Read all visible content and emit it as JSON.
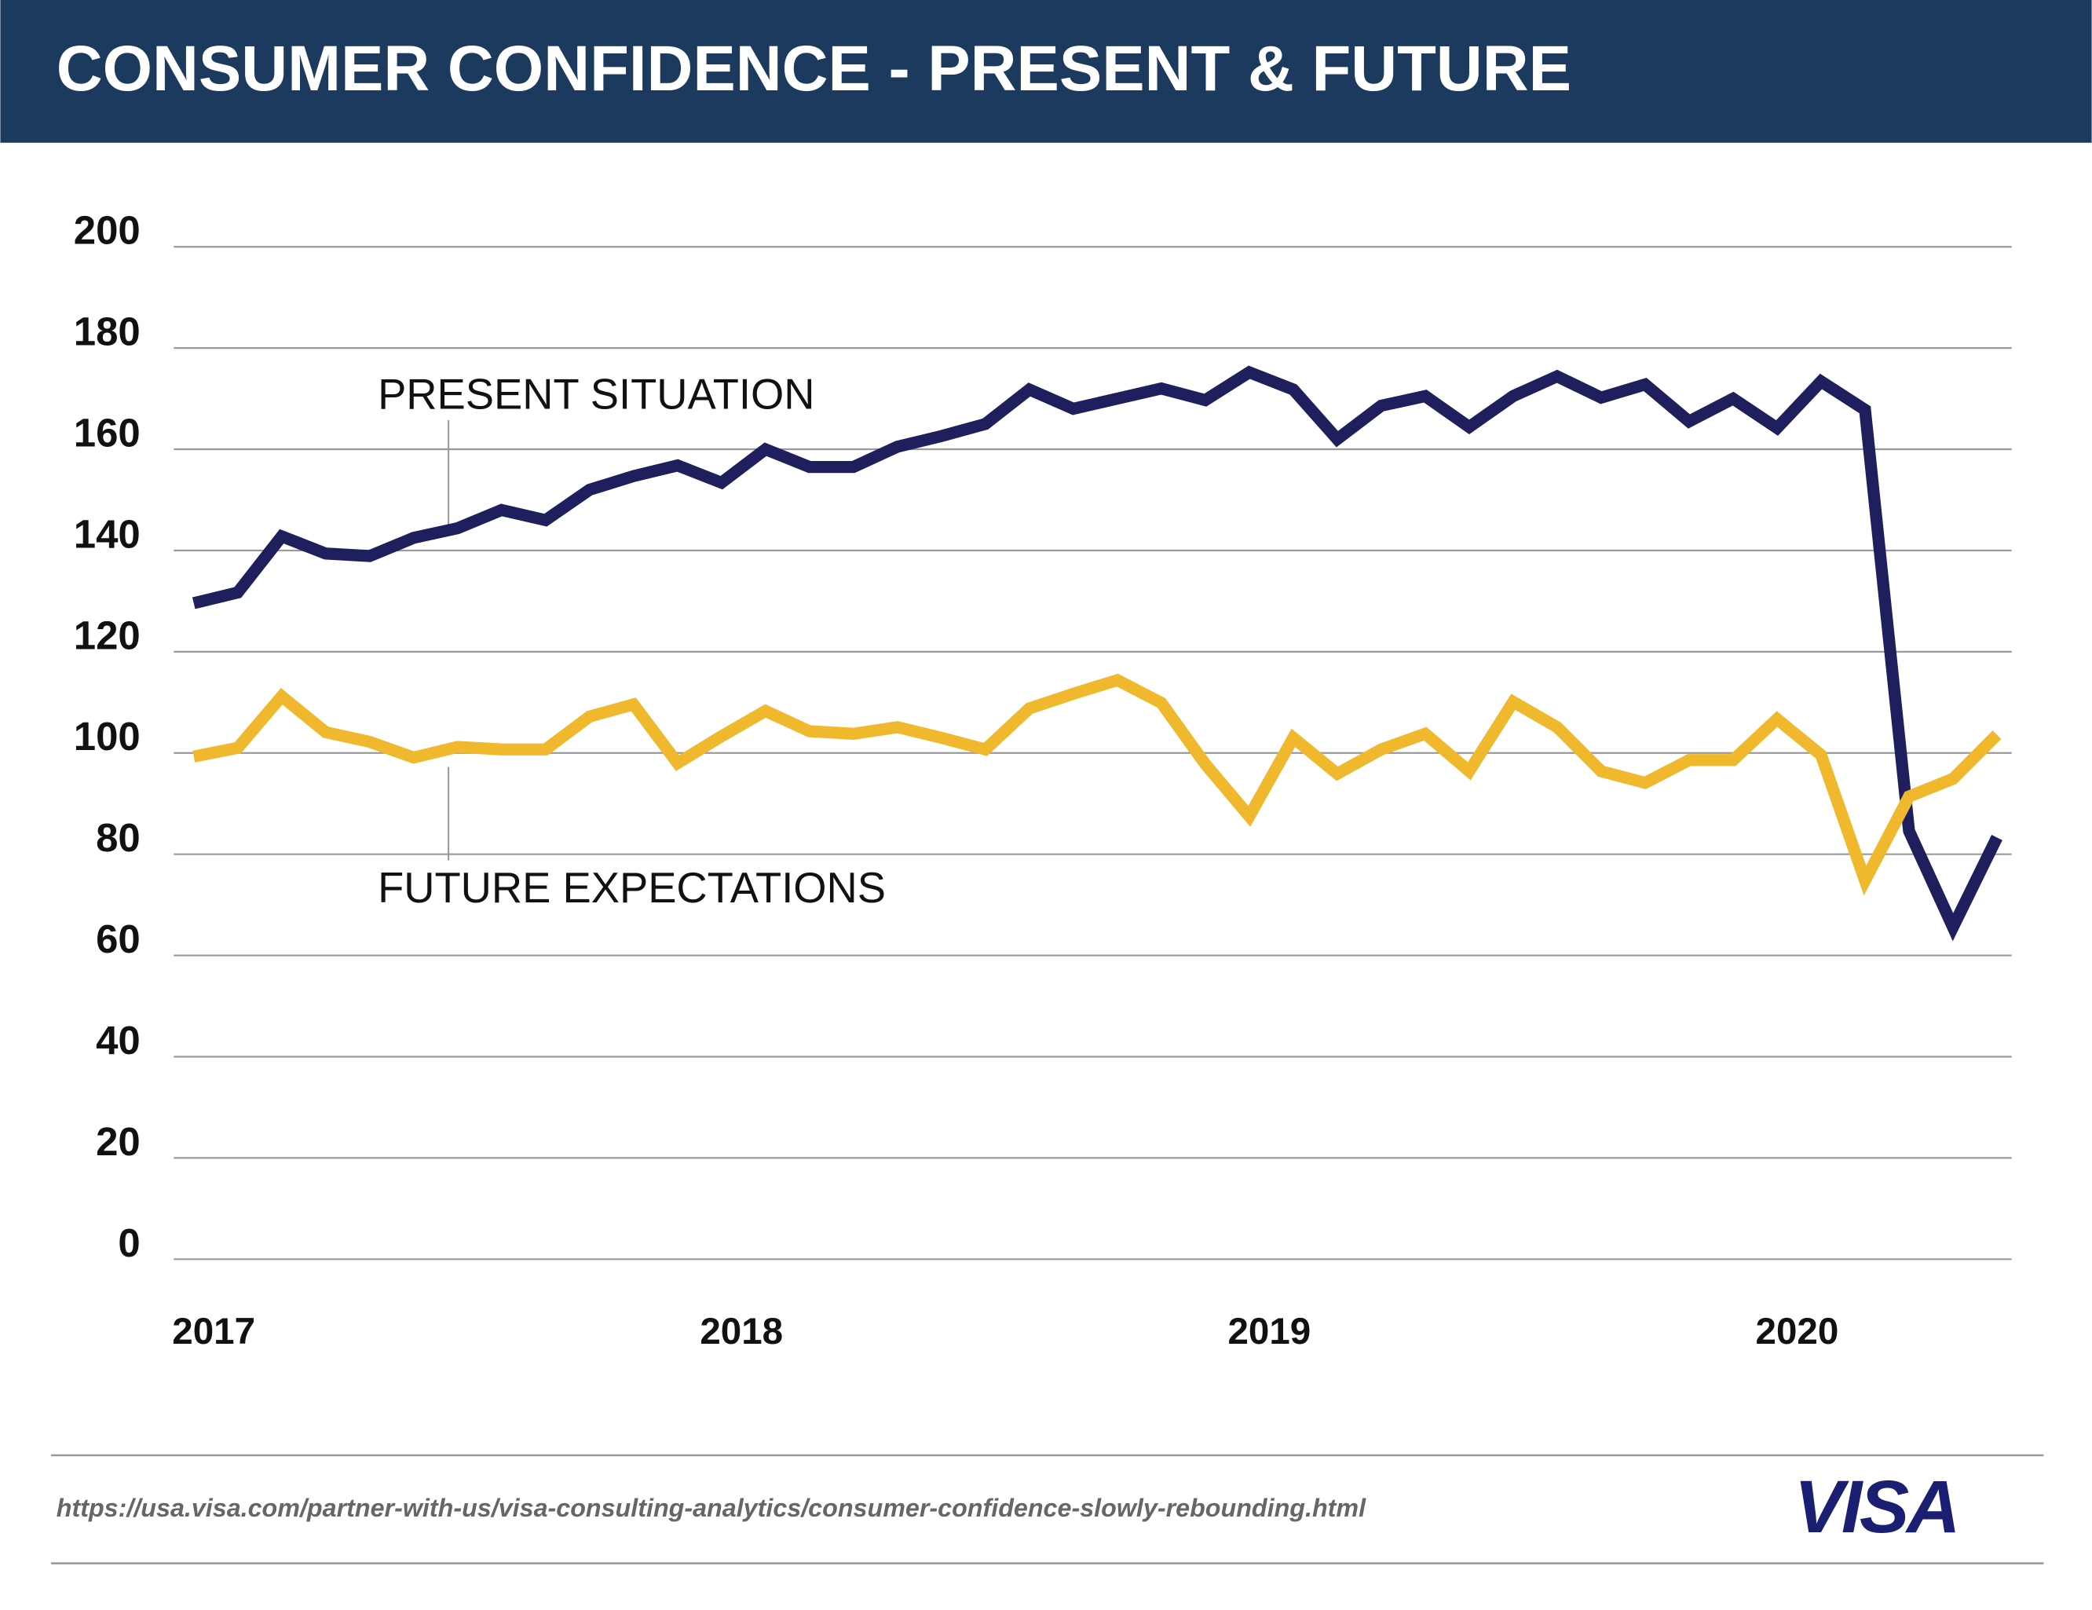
{
  "chart_data": {
    "type": "line",
    "title": "CONSUMER CONFIDENCE - PRESENT & FUTURE",
    "categories": [
      "2017",
      null,
      null,
      null,
      null,
      null,
      null,
      null,
      null,
      null,
      null,
      null,
      "2018",
      null,
      null,
      null,
      null,
      null,
      null,
      null,
      null,
      null,
      null,
      null,
      "2019",
      null,
      null,
      null,
      null,
      null,
      null,
      null,
      null,
      null,
      null,
      null,
      "2020",
      null,
      null,
      null,
      null,
      null
    ],
    "series": [
      {
        "name": "PRESENT SITUATION",
        "color": "#1f1f5e",
        "values": [
          129.6,
          131.7,
          142.8,
          139.4,
          138.9,
          142.5,
          144.4,
          148.0,
          146.0,
          152.0,
          154.7,
          156.8,
          153.4,
          160.0,
          156.5,
          156.5,
          160.5,
          162.6,
          165.0,
          171.8,
          168.0,
          170.0,
          172.0,
          169.7,
          175.2,
          171.8,
          162.0,
          168.6,
          170.5,
          164.4,
          170.5,
          174.4,
          170.2,
          172.8,
          165.5,
          170.0,
          164.2,
          173.4,
          167.8,
          84.6,
          65.6,
          83.3
        ]
      },
      {
        "name": "FUTURE EXPECTATIONS",
        "color": "#f0b92d",
        "values": [
          99.3,
          101.0,
          111.2,
          104.1,
          102.2,
          99.1,
          101.2,
          100.7,
          100.7,
          107.2,
          109.6,
          98.0,
          103.3,
          108.3,
          104.3,
          103.8,
          105.1,
          103.0,
          100.7,
          108.8,
          111.7,
          114.4,
          109.9,
          97.8,
          87.5,
          103.0,
          95.9,
          100.7,
          103.8,
          96.4,
          110.1,
          105.1,
          96.4,
          94.1,
          98.6,
          98.6,
          106.7,
          99.6,
          74.8,
          91.4,
          94.9,
          103.6
        ]
      }
    ],
    "ylim": [
      0,
      200
    ],
    "yticks": [
      0,
      20,
      40,
      60,
      80,
      100,
      120,
      140,
      160,
      180,
      200
    ],
    "grid": true,
    "source": "https://usa.visa.com/partner-with-us/visa-consulting-analytics/consumer-confidence-slowly-rebounding.html",
    "logo": "VISA"
  }
}
